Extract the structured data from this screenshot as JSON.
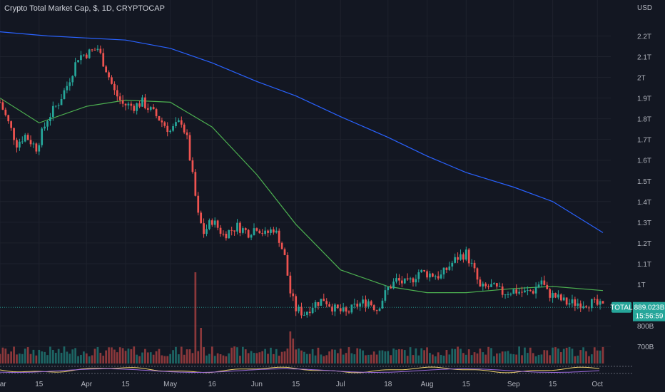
{
  "header": {
    "title": "Crypto Total Market Cap, $, 1D, CRYPTOCAP",
    "currency": "USD"
  },
  "price_tag": {
    "symbol": "TOTAL",
    "value": "889.023B",
    "countdown": "15:56:59"
  },
  "chart_data": {
    "type": "candlestick",
    "y_axis_labels": [
      "2.2T",
      "2.1T",
      "2T",
      "1.9T",
      "1.8T",
      "1.7T",
      "1.6T",
      "1.5T",
      "1.4T",
      "1.3T",
      "1.2T",
      "1.1T",
      "1T",
      "800B",
      "700B"
    ],
    "y_axis_values": [
      2.2,
      2.1,
      2.0,
      1.9,
      1.8,
      1.7,
      1.6,
      1.5,
      1.4,
      1.3,
      1.2,
      1.1,
      1.0,
      0.8,
      0.7
    ],
    "y_unit": "T",
    "x_axis_labels": [
      "Mar",
      "15",
      "Apr",
      "15",
      "May",
      "16",
      "Jun",
      "15",
      "Jul",
      "18",
      "Aug",
      "15",
      "Sep",
      "15",
      "Oct"
    ],
    "x_axis_dates": [
      "2022-03-01",
      "2022-03-15",
      "2022-04-01",
      "2022-04-15",
      "2022-05-01",
      "2022-05-16",
      "2022-06-01",
      "2022-06-15",
      "2022-07-01",
      "2022-07-18",
      "2022-08-01",
      "2022-08-15",
      "2022-09-01",
      "2022-09-15",
      "2022-10-01"
    ],
    "close_path": [
      [
        "2022-03-01",
        1.88
      ],
      [
        "2022-03-04",
        1.78
      ],
      [
        "2022-03-07",
        1.68
      ],
      [
        "2022-03-10",
        1.72
      ],
      [
        "2022-03-14",
        1.66
      ],
      [
        "2022-03-18",
        1.8
      ],
      [
        "2022-03-22",
        1.88
      ],
      [
        "2022-03-25",
        1.96
      ],
      [
        "2022-03-29",
        2.1
      ],
      [
        "2022-04-02",
        2.12
      ],
      [
        "2022-04-05",
        2.14
      ],
      [
        "2022-04-08",
        2.04
      ],
      [
        "2022-04-11",
        1.93
      ],
      [
        "2022-04-14",
        1.87
      ],
      [
        "2022-04-18",
        1.86
      ],
      [
        "2022-04-21",
        1.88
      ],
      [
        "2022-04-24",
        1.84
      ],
      [
        "2022-04-27",
        1.8
      ],
      [
        "2022-05-01",
        1.74
      ],
      [
        "2022-05-05",
        1.79
      ],
      [
        "2022-05-07",
        1.7
      ],
      [
        "2022-05-09",
        1.52
      ],
      [
        "2022-05-11",
        1.33
      ],
      [
        "2022-05-13",
        1.25
      ],
      [
        "2022-05-16",
        1.31
      ],
      [
        "2022-05-20",
        1.24
      ],
      [
        "2022-05-25",
        1.28
      ],
      [
        "2022-05-29",
        1.25
      ],
      [
        "2022-06-01",
        1.28
      ],
      [
        "2022-06-04",
        1.24
      ],
      [
        "2022-06-07",
        1.27
      ],
      [
        "2022-06-09",
        1.22
      ],
      [
        "2022-06-11",
        1.13
      ],
      [
        "2022-06-13",
        0.96
      ],
      [
        "2022-06-15",
        0.88
      ],
      [
        "2022-06-18",
        0.86
      ],
      [
        "2022-06-21",
        0.9
      ],
      [
        "2022-06-25",
        0.93
      ],
      [
        "2022-06-29",
        0.88
      ],
      [
        "2022-07-03",
        0.86
      ],
      [
        "2022-07-07",
        0.9
      ],
      [
        "2022-07-11",
        0.92
      ],
      [
        "2022-07-14",
        0.88
      ],
      [
        "2022-07-18",
        0.98
      ],
      [
        "2022-07-21",
        1.02
      ],
      [
        "2022-07-25",
        1.0
      ],
      [
        "2022-07-29",
        1.06
      ],
      [
        "2022-08-02",
        1.05
      ],
      [
        "2022-08-06",
        1.04
      ],
      [
        "2022-08-09",
        1.09
      ],
      [
        "2022-08-12",
        1.13
      ],
      [
        "2022-08-15",
        1.15
      ],
      [
        "2022-08-18",
        1.06
      ],
      [
        "2022-08-20",
        0.98
      ],
      [
        "2022-08-24",
        0.99
      ],
      [
        "2022-08-28",
        0.96
      ],
      [
        "2022-09-01",
        0.97
      ],
      [
        "2022-09-05",
        0.96
      ],
      [
        "2022-09-08",
        0.97
      ],
      [
        "2022-09-11",
        1.02
      ],
      [
        "2022-09-13",
        0.96
      ],
      [
        "2022-09-16",
        0.94
      ],
      [
        "2022-09-20",
        0.91
      ],
      [
        "2022-09-25",
        0.91
      ],
      [
        "2022-09-29",
        0.91
      ],
      [
        "2022-10-03",
        0.89
      ]
    ],
    "series": [
      {
        "name": "",
        "color": "#2962ff",
        "points": [
          [
            "2022-03-01",
            2.22
          ],
          [
            "2022-03-18",
            2.2
          ],
          [
            "2022-04-01",
            2.19
          ],
          [
            "2022-04-15",
            2.18
          ],
          [
            "2022-05-01",
            2.14
          ],
          [
            "2022-05-16",
            2.07
          ],
          [
            "2022-06-01",
            1.98
          ],
          [
            "2022-06-15",
            1.91
          ],
          [
            "2022-07-01",
            1.81
          ],
          [
            "2022-07-18",
            1.71
          ],
          [
            "2022-08-01",
            1.62
          ],
          [
            "2022-08-15",
            1.54
          ],
          [
            "2022-09-01",
            1.47
          ],
          [
            "2022-09-15",
            1.4
          ],
          [
            "2022-10-03",
            1.25
          ]
        ]
      },
      {
        "name": "",
        "color": "#4caf50",
        "points": [
          [
            "2022-03-01",
            1.9
          ],
          [
            "2022-03-15",
            1.78
          ],
          [
            "2022-04-01",
            1.86
          ],
          [
            "2022-04-15",
            1.89
          ],
          [
            "2022-05-01",
            1.88
          ],
          [
            "2022-05-16",
            1.76
          ],
          [
            "2022-06-01",
            1.53
          ],
          [
            "2022-06-15",
            1.29
          ],
          [
            "2022-07-01",
            1.07
          ],
          [
            "2022-07-18",
            0.99
          ],
          [
            "2022-08-01",
            0.96
          ],
          [
            "2022-08-15",
            0.96
          ],
          [
            "2022-09-01",
            0.98
          ],
          [
            "2022-09-15",
            0.99
          ],
          [
            "2022-10-03",
            0.97
          ]
        ]
      }
    ],
    "current_value": 0.889,
    "colors": {
      "up": "#26a69a",
      "down": "#ef5350",
      "background": "#131722",
      "grid": "#1e222d"
    }
  }
}
